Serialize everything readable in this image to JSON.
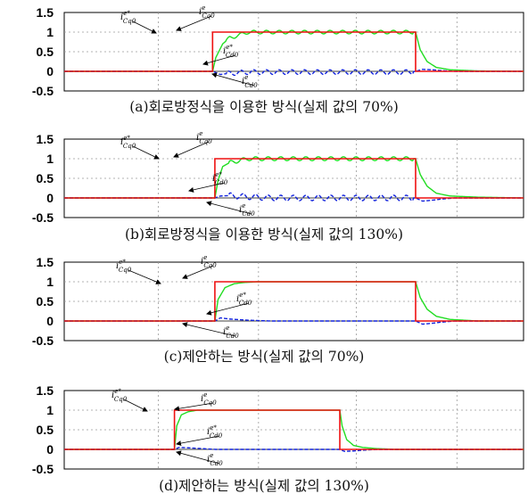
{
  "chart_data": [
    {
      "type": "line",
      "caption": "(a)회로방정식을 이용한 방식(실제 값의 70%)",
      "y_ticks": [
        "1.5",
        "1",
        "0.5",
        "0",
        "-0.5"
      ],
      "ylim": [
        -0.5,
        1.5
      ],
      "xlim": [
        0,
        1
      ],
      "grid": true,
      "annotations": [
        {
          "base": "i",
          "sup": "e*",
          "sub": "Cq0"
        },
        {
          "base": "i",
          "sup": "e",
          "sub": "Cq0"
        },
        {
          "base": "i",
          "sup": "e*",
          "sub": "Cd0"
        },
        {
          "base": "i",
          "sup": "e",
          "sub": "Cd0"
        }
      ],
      "series": [
        {
          "color": "#ee1111",
          "x": [
            0,
            0.323,
            0.323,
            0.765,
            0.765,
            1
          ],
          "y": [
            0,
            0,
            1,
            1,
            0,
            0
          ]
        },
        {
          "color": "#22dd22",
          "x": [
            0,
            0.323,
            0.33,
            0.345,
            0.36,
            0.38,
            0.4,
            0.45,
            0.5,
            0.55,
            0.6,
            0.65,
            0.7,
            0.75,
            0.765,
            0.775,
            0.79,
            0.81,
            0.84,
            0.9,
            1
          ],
          "y": [
            0,
            0,
            0.35,
            0.7,
            0.85,
            0.92,
            1.0,
            1.0,
            1.0,
            1.0,
            1.0,
            1.0,
            1.0,
            1.0,
            1.0,
            0.55,
            0.25,
            0.1,
            0.04,
            0.01,
            0.0
          ]
        },
        {
          "color": "#1122dd",
          "x": [
            0,
            0.323,
            0.34,
            0.36,
            0.4,
            0.45,
            0.5,
            0.55,
            0.6,
            0.65,
            0.7,
            0.75,
            0.765,
            0.78,
            0.8,
            0.82,
            0.85,
            1
          ],
          "y": [
            0,
            0,
            -0.08,
            -0.05,
            -0.02,
            -0.02,
            -0.02,
            -0.02,
            -0.02,
            -0.02,
            -0.02,
            -0.02,
            0,
            0.05,
            0.04,
            0.02,
            0.0,
            0.0
          ]
        }
      ],
      "ripple": {
        "green": {
          "amp": 0.045,
          "cycles": 16
        },
        "blue": {
          "amp": 0.06,
          "cycles": 16
        }
      }
    },
    {
      "type": "line",
      "caption": "(b)회로방정식을 이용한 방식(실제 값의 130%)",
      "y_ticks": [
        "1.5",
        "1",
        "0.5",
        "0",
        "-0.5"
      ],
      "ylim": [
        -0.5,
        1.5
      ],
      "xlim": [
        0,
        1
      ],
      "grid": true,
      "annotations": [
        {
          "base": "i",
          "sup": "e*",
          "sub": "Cq0"
        },
        {
          "base": "i",
          "sup": "e",
          "sub": "Cq0"
        },
        {
          "base": "i",
          "sup": "e*",
          "sub": "Cd0"
        },
        {
          "base": "i",
          "sup": "e",
          "sub": "Cd0"
        }
      ],
      "series": [
        {
          "color": "#ee1111",
          "x": [
            0,
            0.328,
            0.328,
            0.765,
            0.765,
            1
          ],
          "y": [
            0,
            0,
            1,
            1,
            0,
            0
          ]
        },
        {
          "color": "#22dd22",
          "x": [
            0,
            0.328,
            0.335,
            0.345,
            0.36,
            0.38,
            0.4,
            0.45,
            0.5,
            0.55,
            0.6,
            0.65,
            0.7,
            0.75,
            0.765,
            0.775,
            0.79,
            0.81,
            0.84,
            0.9,
            1
          ],
          "y": [
            0,
            0,
            0.45,
            0.8,
            0.9,
            0.95,
            1.0,
            1.0,
            1.0,
            1.0,
            1.0,
            1.0,
            1.0,
            1.0,
            1.0,
            0.6,
            0.3,
            0.12,
            0.05,
            0.02,
            0.0
          ]
        },
        {
          "color": "#1122dd",
          "x": [
            0,
            0.328,
            0.34,
            0.36,
            0.4,
            0.45,
            0.5,
            0.55,
            0.6,
            0.65,
            0.7,
            0.75,
            0.765,
            0.78,
            0.8,
            0.82,
            0.85,
            1
          ],
          "y": [
            0,
            0,
            0.05,
            0.06,
            0.03,
            0.0,
            0.0,
            0.0,
            0.0,
            0.0,
            0.0,
            0.0,
            0,
            -0.08,
            -0.06,
            -0.03,
            0.0,
            0.0
          ]
        }
      ],
      "ripple": {
        "green": {
          "amp": 0.05,
          "cycles": 16
        },
        "blue": {
          "amp": 0.07,
          "cycles": 16
        }
      }
    },
    {
      "type": "line",
      "caption": "(c)제안하는 방식(실제 값의 70%)",
      "y_ticks": [
        "1.5",
        "1",
        "0.5",
        "0",
        "-0.5"
      ],
      "ylim": [
        -0.5,
        1.5
      ],
      "xlim": [
        0,
        1
      ],
      "grid": true,
      "annotations": [
        {
          "base": "i",
          "sup": "e*",
          "sub": "Cq0"
        },
        {
          "base": "i",
          "sup": "e",
          "sub": "Cq0"
        },
        {
          "base": "i",
          "sup": "e*",
          "sub": "Cd0"
        },
        {
          "base": "i",
          "sup": "e",
          "sub": "Cd0"
        }
      ],
      "series": [
        {
          "color": "#ee1111",
          "x": [
            0,
            0.328,
            0.328,
            0.765,
            0.765,
            1
          ],
          "y": [
            0,
            0,
            1,
            1,
            0,
            0
          ]
        },
        {
          "color": "#22dd22",
          "x": [
            0,
            0.328,
            0.335,
            0.35,
            0.37,
            0.39,
            0.42,
            0.45,
            0.5,
            0.765,
            0.775,
            0.79,
            0.81,
            0.84,
            0.9,
            1
          ],
          "y": [
            0,
            0,
            0.55,
            0.85,
            0.95,
            0.98,
            1.0,
            1.0,
            1.0,
            1.0,
            0.6,
            0.3,
            0.12,
            0.04,
            0.0,
            0.0
          ]
        },
        {
          "color": "#1122dd",
          "x": [
            0,
            0.328,
            0.34,
            0.36,
            0.4,
            0.45,
            0.765,
            0.78,
            0.8,
            0.82,
            0.85,
            1
          ],
          "y": [
            0,
            0,
            0.08,
            0.05,
            0.02,
            0.0,
            0.0,
            -0.08,
            -0.06,
            -0.03,
            0.0,
            0.0
          ]
        }
      ],
      "ripple": {
        "green": {
          "amp": 0.0,
          "cycles": 0
        },
        "blue": {
          "amp": 0.0,
          "cycles": 0
        }
      }
    },
    {
      "type": "line",
      "caption": "(d)제안하는 방식(실제 값의 130%)",
      "y_ticks": [
        "1.5",
        "1",
        "0.5",
        "0",
        "-0.5"
      ],
      "ylim": [
        -0.5,
        1.5
      ],
      "xlim": [
        0,
        1
      ],
      "grid": true,
      "annotations": [
        {
          "base": "i",
          "sup": "e*",
          "sub": "Cq0"
        },
        {
          "base": "i",
          "sup": "e",
          "sub": "Cq0"
        },
        {
          "base": "i",
          "sup": "e*",
          "sub": "Cd0"
        },
        {
          "base": "i",
          "sup": "e",
          "sub": "Cd0"
        }
      ],
      "series": [
        {
          "color": "#ee1111",
          "x": [
            0,
            0.24,
            0.24,
            0.6,
            0.6,
            1
          ],
          "y": [
            0,
            0,
            1,
            1,
            0,
            0
          ]
        },
        {
          "color": "#22dd22",
          "x": [
            0,
            0.24,
            0.245,
            0.255,
            0.27,
            0.29,
            0.32,
            0.36,
            0.6,
            0.605,
            0.615,
            0.63,
            0.65,
            0.68,
            0.72,
            1
          ],
          "y": [
            0,
            0,
            0.6,
            0.88,
            0.96,
            1.0,
            1.0,
            1.0,
            1.0,
            0.6,
            0.25,
            0.1,
            0.05,
            0.02,
            0.0,
            0.0
          ]
        },
        {
          "color": "#1122dd",
          "x": [
            0,
            0.24,
            0.25,
            0.27,
            0.3,
            0.33,
            0.6,
            0.61,
            0.63,
            0.65,
            0.68,
            1
          ],
          "y": [
            0,
            0,
            0.05,
            0.04,
            0.02,
            0.0,
            0.0,
            -0.05,
            -0.04,
            -0.02,
            0.0,
            0.0
          ]
        }
      ],
      "ripple": {
        "green": {
          "amp": 0.0,
          "cycles": 0
        },
        "blue": {
          "amp": 0.0,
          "cycles": 0
        }
      }
    }
  ]
}
